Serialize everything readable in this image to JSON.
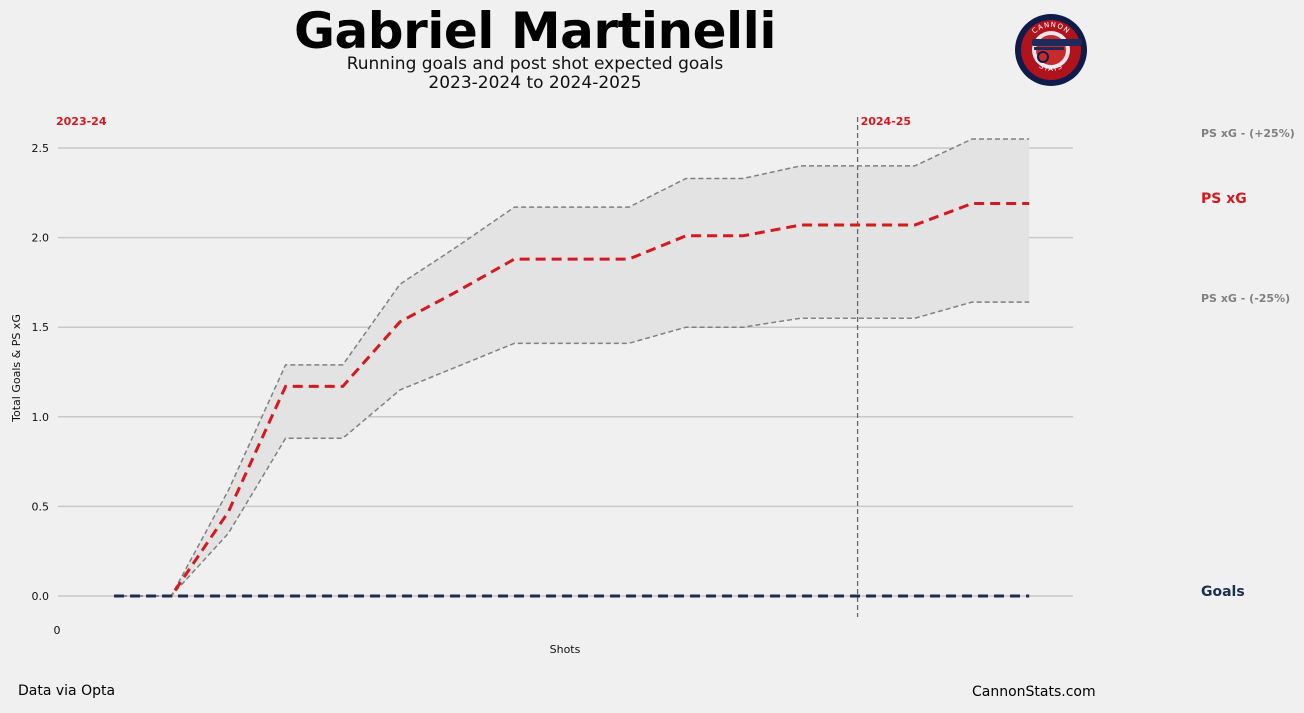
{
  "header": {
    "title": "Gabriel Martinelli",
    "subtitle_line1": "Running goals and post shot expected goals",
    "subtitle_line2": "2023-2024 to 2024-2025"
  },
  "logo": {
    "text": "CANNON STATS",
    "icon": "cannon-stats-logo"
  },
  "footer": {
    "source": "Data via Opta",
    "site": "CannonStats.com"
  },
  "colors": {
    "psxg": "#d7191f",
    "goals": "#1b2f4e",
    "band": "#808080",
    "grid": "#c8c8c8",
    "band_fill": "#e3e3e3"
  },
  "chart_data": {
    "type": "line",
    "title": "Gabriel Martinelli",
    "xlabel": "Shots",
    "ylabel": "Total Goals & PS xG",
    "x_tick_labels": [
      "0"
    ],
    "ylim": [
      -0.12,
      2.67
    ],
    "yticks": [
      "0.0",
      "0.5",
      "1.0",
      "1.5",
      "2.0",
      "2.5"
    ],
    "grid": true,
    "x": [
      1,
      2,
      3,
      4,
      5,
      6,
      7,
      8,
      9,
      10,
      11,
      12,
      13,
      14,
      15,
      16,
      17
    ],
    "series": [
      {
        "name": "PS xG",
        "style": "dashed-thick",
        "values": [
          0,
          0,
          0.47,
          1.17,
          1.17,
          1.53,
          1.7,
          1.88,
          1.88,
          1.88,
          2.01,
          2.01,
          2.07,
          2.07,
          2.07,
          2.19,
          2.19
        ]
      },
      {
        "name": "PS xG - (+25%)",
        "style": "dashed-thin",
        "values": [
          0,
          0,
          0.59,
          1.29,
          1.29,
          1.74,
          1.95,
          2.17,
          2.17,
          2.17,
          2.33,
          2.33,
          2.4,
          2.4,
          2.4,
          2.55,
          2.55
        ]
      },
      {
        "name": "PS xG - (-25%)",
        "style": "dashed-thin",
        "values": [
          0,
          0,
          0.35,
          0.88,
          0.88,
          1.15,
          1.28,
          1.41,
          1.41,
          1.41,
          1.5,
          1.5,
          1.55,
          1.55,
          1.55,
          1.64,
          1.64
        ]
      },
      {
        "name": "Goals",
        "style": "dashed-thick",
        "values": [
          0,
          0,
          0,
          0,
          0,
          0,
          0,
          0,
          0,
          0,
          0,
          0,
          0,
          0,
          0,
          0,
          0
        ]
      }
    ],
    "season_markers": [
      {
        "label": "2023-24",
        "x": 0
      },
      {
        "label": "2024-25",
        "x": 14
      }
    ],
    "legend_placement": "right"
  }
}
